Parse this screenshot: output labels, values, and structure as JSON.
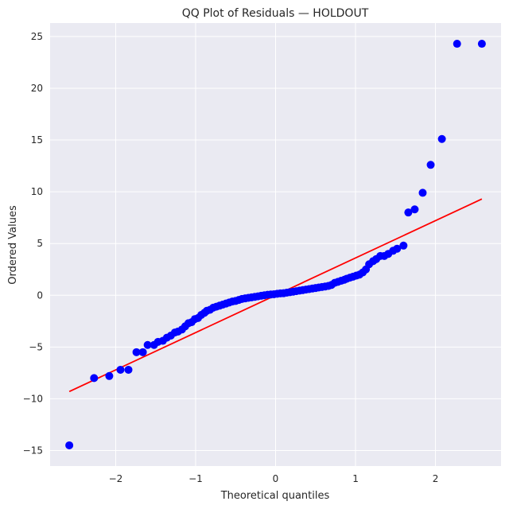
{
  "chart_data": {
    "type": "scatter",
    "title": "QQ Plot of Residuals — HOLDOUT",
    "xlabel": "Theoretical quantiles",
    "ylabel": "Ordered Values",
    "xlim": [
      -2.82,
      2.82
    ],
    "ylim": [
      -16.5,
      26.3
    ],
    "xticks": [
      -2,
      -1,
      0,
      1,
      2
    ],
    "xtick_labels": [
      "−2",
      "−1",
      "0",
      "1",
      "2"
    ],
    "yticks": [
      -15,
      -10,
      -5,
      0,
      5,
      10,
      15,
      20,
      25
    ],
    "ytick_labels": [
      "−15",
      "−10",
      "−5",
      "0",
      "5",
      "10",
      "15",
      "20",
      "25"
    ],
    "grid": true,
    "colors": {
      "background": "#eaeaf2",
      "grid": "#ffffff",
      "points": "#0000ff",
      "fit_line": "#ff0000"
    },
    "fit_line": {
      "x": [
        -2.58,
        2.58
      ],
      "y": [
        -9.3,
        9.3
      ]
    },
    "series": [
      {
        "x": [
          -2.58,
          -2.27,
          -2.08,
          -1.94,
          -1.84,
          -1.74,
          -1.66,
          -1.6,
          -1.52,
          -1.47,
          -1.41,
          -1.36,
          -1.31,
          -1.26,
          -1.22,
          -1.17,
          -1.13,
          -1.09,
          -1.05,
          -1.01,
          -0.97,
          -0.93,
          -0.89,
          -0.86,
          -0.82,
          -0.78,
          -0.74,
          -0.7,
          -0.66,
          -0.62,
          -0.58,
          -0.54,
          -0.5,
          -0.46,
          -0.42,
          -0.38,
          -0.34,
          -0.3,
          -0.26,
          -0.22,
          -0.18,
          -0.14,
          -0.1,
          -0.06,
          -0.02,
          0.02,
          0.06,
          0.1,
          0.14,
          0.18,
          0.22,
          0.26,
          0.3,
          0.34,
          0.38,
          0.42,
          0.46,
          0.5,
          0.54,
          0.58,
          0.62,
          0.66,
          0.7,
          0.74,
          0.78,
          0.82,
          0.86,
          0.89,
          0.93,
          0.97,
          1.01,
          1.05,
          1.09,
          1.13,
          1.17,
          1.22,
          1.26,
          1.31,
          1.36,
          1.41,
          1.47,
          1.52,
          1.6,
          1.66,
          1.74,
          1.84,
          1.94,
          2.08,
          2.27,
          2.58
        ],
        "y": [
          -14.5,
          -8.0,
          -7.8,
          -7.2,
          -7.2,
          -5.5,
          -5.5,
          -4.8,
          -4.8,
          -4.5,
          -4.4,
          -4.1,
          -3.9,
          -3.6,
          -3.5,
          -3.3,
          -3.0,
          -2.7,
          -2.6,
          -2.3,
          -2.2,
          -1.9,
          -1.7,
          -1.5,
          -1.4,
          -1.2,
          -1.1,
          -1.0,
          -0.9,
          -0.8,
          -0.7,
          -0.6,
          -0.55,
          -0.45,
          -0.35,
          -0.3,
          -0.25,
          -0.2,
          -0.15,
          -0.1,
          -0.05,
          0.0,
          0.05,
          0.08,
          0.1,
          0.15,
          0.18,
          0.2,
          0.25,
          0.3,
          0.35,
          0.4,
          0.45,
          0.5,
          0.55,
          0.6,
          0.65,
          0.7,
          0.75,
          0.8,
          0.85,
          0.9,
          1.0,
          1.2,
          1.3,
          1.4,
          1.5,
          1.6,
          1.7,
          1.8,
          1.9,
          2.0,
          2.2,
          2.5,
          3.0,
          3.3,
          3.5,
          3.8,
          3.8,
          4.0,
          4.3,
          4.5,
          4.8,
          8.0,
          8.3,
          9.9,
          12.6,
          15.1,
          24.3,
          24.3
        ]
      }
    ]
  }
}
